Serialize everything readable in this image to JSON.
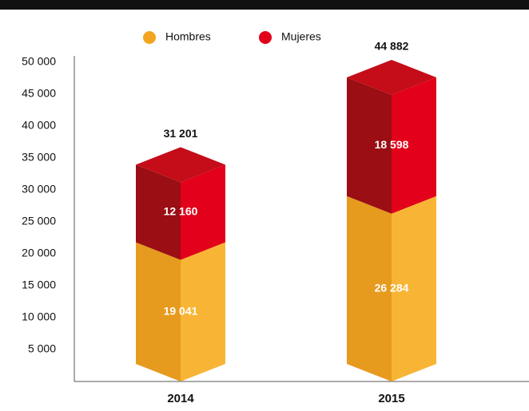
{
  "chart_data": {
    "type": "bar3d-stacked",
    "categories": [
      "2014",
      "2015"
    ],
    "series": [
      {
        "name": "Hombres",
        "color": "#f3a51f",
        "values": [
          19041,
          26284
        ],
        "value_labels": [
          "19 041",
          "26 284"
        ]
      },
      {
        "name": "Mujeres",
        "color": "#e2001a",
        "values": [
          12160,
          18598
        ],
        "value_labels": [
          "12 160",
          "18 598"
        ]
      }
    ],
    "totals": [
      31201,
      44882
    ],
    "totals_labels": [
      "31 201",
      "44 882"
    ],
    "ylim": [
      0,
      50000
    ],
    "yticks": [
      {
        "value": 5000,
        "label": "5 000"
      },
      {
        "value": 10000,
        "label": "10 000"
      },
      {
        "value": 15000,
        "label": "15 000"
      },
      {
        "value": 20000,
        "label": "20 000"
      },
      {
        "value": 25000,
        "label": "25 000"
      },
      {
        "value": 30000,
        "label": "30 000"
      },
      {
        "value": 35000,
        "label": "35 000"
      },
      {
        "value": 40000,
        "label": "40 000"
      },
      {
        "value": 45000,
        "label": "45 000"
      },
      {
        "value": 50000,
        "label": "50 000"
      }
    ],
    "legend": "top"
  }
}
